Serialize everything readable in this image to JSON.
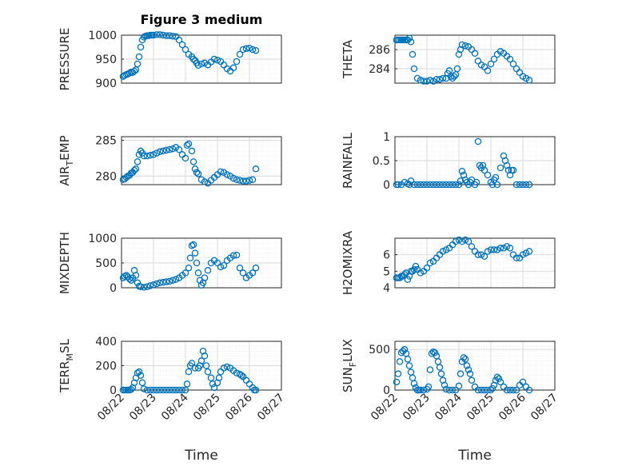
{
  "figure_title": "Figure 3 medium",
  "colors": {
    "marker": "#0072bd",
    "axis": "#262626",
    "grid": "#d7d7d7"
  },
  "chart_data": [
    {
      "type": "scatter",
      "ylabel": "PRESSURE",
      "xlim": [
        0,
        5
      ],
      "xticks": [],
      "ylim": [
        900,
        1000
      ],
      "yticks": [
        900,
        950,
        1000
      ],
      "x": [
        0.05,
        0.1,
        0.15,
        0.2,
        0.25,
        0.3,
        0.35,
        0.4,
        0.45,
        0.5,
        0.55,
        0.6,
        0.65,
        0.7,
        0.75,
        0.8,
        0.85,
        0.9,
        0.95,
        1.0,
        1.1,
        1.2,
        1.3,
        1.4,
        1.5,
        1.6,
        1.7,
        1.8,
        1.9,
        2.0,
        2.1,
        2.2,
        2.25,
        2.3,
        2.35,
        2.4,
        2.5,
        2.6,
        2.7,
        2.8,
        2.9,
        3.0,
        3.1,
        3.2,
        3.3,
        3.4,
        3.5,
        3.6,
        3.7,
        3.8,
        3.9,
        4.0,
        4.1,
        4.2
      ],
      "y": [
        914,
        916,
        918,
        919,
        921,
        923,
        922,
        925,
        928,
        940,
        955,
        975,
        990,
        996,
        998,
        999,
        999,
        1000,
        1000,
        1000,
        1001,
        1001,
        1000,
        999,
        999,
        998,
        997,
        990,
        980,
        970,
        960,
        955,
        950,
        947,
        942,
        937,
        940,
        942,
        938,
        944,
        950,
        948,
        945,
        938,
        930,
        925,
        932,
        945,
        960,
        970,
        972,
        973,
        970,
        968
      ]
    },
    {
      "type": "scatter",
      "ylabel": "THETA",
      "xlim": [
        0,
        5
      ],
      "xticks": [],
      "ylim": [
        282.5,
        287.5
      ],
      "yticks": [
        284,
        286
      ],
      "x": [
        0.05,
        0.1,
        0.15,
        0.2,
        0.25,
        0.3,
        0.35,
        0.4,
        0.45,
        0.5,
        0.55,
        0.6,
        0.7,
        0.8,
        0.9,
        1.0,
        1.1,
        1.2,
        1.3,
        1.4,
        1.5,
        1.6,
        1.65,
        1.7,
        1.75,
        1.8,
        1.85,
        1.9,
        1.95,
        2.0,
        2.05,
        2.1,
        2.2,
        2.3,
        2.4,
        2.5,
        2.6,
        2.7,
        2.8,
        2.9,
        3.0,
        3.1,
        3.2,
        3.3,
        3.4,
        3.5,
        3.6,
        3.7,
        3.8,
        3.9,
        4.0,
        4.1,
        4.2
      ],
      "y": [
        287,
        287,
        287,
        287,
        287,
        287,
        287,
        287,
        287.2,
        286.8,
        285.5,
        284,
        283,
        282.8,
        282.7,
        282.7,
        282.8,
        282.7,
        282.9,
        282.9,
        283,
        283,
        283.5,
        283.8,
        283.2,
        283,
        283.2,
        283.4,
        284,
        285.5,
        286,
        286.5,
        286.4,
        286.3,
        286,
        285.6,
        284.8,
        284.4,
        284.2,
        283.8,
        284.5,
        285,
        285.5,
        285.8,
        285.6,
        285.3,
        285,
        284.5,
        284,
        283.6,
        283.2,
        283,
        282.8
      ]
    },
    {
      "type": "scatter",
      "ylabel": "AIR_TEMP",
      "xlim": [
        0,
        5
      ],
      "xticks": [],
      "ylim": [
        278.8,
        285.5
      ],
      "yticks": [
        280,
        285
      ],
      "x": [
        0.05,
        0.1,
        0.15,
        0.2,
        0.25,
        0.3,
        0.35,
        0.4,
        0.45,
        0.5,
        0.55,
        0.6,
        0.65,
        0.7,
        0.8,
        0.9,
        1.0,
        1.1,
        1.2,
        1.3,
        1.4,
        1.5,
        1.6,
        1.7,
        1.8,
        1.9,
        2.0,
        2.05,
        2.1,
        2.2,
        2.25,
        2.3,
        2.35,
        2.4,
        2.5,
        2.6,
        2.7,
        2.8,
        2.9,
        3.0,
        3.1,
        3.2,
        3.3,
        3.4,
        3.5,
        3.6,
        3.7,
        3.8,
        3.9,
        4.0,
        4.1,
        4.2
      ],
      "y": [
        279.5,
        279.6,
        279.8,
        280,
        280.1,
        280.4,
        280.5,
        280.8,
        281,
        282,
        283,
        283.5,
        283.2,
        282.8,
        282.8,
        282.9,
        283,
        283.2,
        283.4,
        283.5,
        283.6,
        283.7,
        283.8,
        284,
        283.7,
        283,
        282.5,
        284.3,
        284.5,
        283.5,
        282,
        281,
        280.5,
        280.3,
        279.5,
        279.2,
        279,
        279.4,
        279.8,
        280.2,
        280.6,
        280.5,
        280.2,
        280,
        279.7,
        279.5,
        279.4,
        279.3,
        279.3,
        279.4,
        279.5,
        281
      ]
    },
    {
      "type": "scatter",
      "ylabel": "RAINFALL",
      "xlim": [
        0,
        5
      ],
      "xticks": [],
      "ylim": [
        0,
        1
      ],
      "yticks": [
        0,
        0.5,
        1
      ],
      "x": [
        0.05,
        0.1,
        0.2,
        0.3,
        0.4,
        0.45,
        0.5,
        0.6,
        0.7,
        0.8,
        0.9,
        1.0,
        1.1,
        1.2,
        1.3,
        1.4,
        1.5,
        1.6,
        1.7,
        1.8,
        1.9,
        2.0,
        2.05,
        2.1,
        2.15,
        2.2,
        2.25,
        2.3,
        2.35,
        2.4,
        2.5,
        2.55,
        2.6,
        2.65,
        2.7,
        2.75,
        2.8,
        2.9,
        3.0,
        3.05,
        3.1,
        3.15,
        3.2,
        3.3,
        3.4,
        3.45,
        3.5,
        3.55,
        3.6,
        3.65,
        3.7,
        3.8,
        3.9,
        4.0,
        4.1,
        4.2
      ],
      "y": [
        0,
        0,
        0,
        0.05,
        0.02,
        0,
        0.08,
        0,
        0,
        0,
        0,
        0,
        0,
        0,
        0,
        0,
        0,
        0,
        0,
        0,
        0,
        0,
        0.08,
        0.28,
        0.2,
        0.1,
        0.05,
        0,
        0.05,
        0.1,
        0,
        0.05,
        0.9,
        0.4,
        0.35,
        0.4,
        0.3,
        0.2,
        0.05,
        0,
        0.1,
        0.15,
        0,
        0.35,
        0.6,
        0.5,
        0.4,
        0.3,
        0.2,
        0.3,
        0.3,
        0,
        0,
        0,
        0,
        0
      ]
    },
    {
      "type": "scatter",
      "ylabel": "MIXDEPTH",
      "xlim": [
        0,
        5
      ],
      "xticks": [],
      "ylim": [
        0,
        1000
      ],
      "yticks": [
        0,
        500,
        1000
      ],
      "x": [
        0.05,
        0.1,
        0.15,
        0.2,
        0.25,
        0.3,
        0.35,
        0.4,
        0.45,
        0.5,
        0.55,
        0.6,
        0.7,
        0.8,
        0.9,
        1.0,
        1.1,
        1.2,
        1.3,
        1.4,
        1.5,
        1.6,
        1.7,
        1.8,
        1.9,
        2.0,
        2.1,
        2.15,
        2.2,
        2.25,
        2.3,
        2.35,
        2.4,
        2.45,
        2.5,
        2.55,
        2.6,
        2.7,
        2.8,
        2.9,
        3.0,
        3.1,
        3.2,
        3.3,
        3.4,
        3.5,
        3.6,
        3.7,
        3.8,
        3.9,
        4.0,
        4.1,
        4.2
      ],
      "y": [
        200,
        230,
        250,
        220,
        180,
        150,
        200,
        350,
        250,
        100,
        30,
        20,
        10,
        20,
        40,
        60,
        80,
        100,
        110,
        120,
        130,
        150,
        170,
        200,
        250,
        300,
        400,
        600,
        850,
        870,
        700,
        500,
        300,
        150,
        50,
        100,
        200,
        350,
        500,
        550,
        500,
        420,
        450,
        550,
        600,
        650,
        660,
        400,
        300,
        200,
        250,
        300,
        400
      ]
    },
    {
      "type": "scatter",
      "ylabel": "H2OMIXRA",
      "xlim": [
        0,
        5
      ],
      "xticks": [],
      "ylim": [
        4,
        7
      ],
      "yticks": [
        4,
        5,
        6
      ],
      "x": [
        0.05,
        0.1,
        0.15,
        0.2,
        0.25,
        0.3,
        0.35,
        0.4,
        0.45,
        0.5,
        0.55,
        0.6,
        0.65,
        0.7,
        0.8,
        0.9,
        1.0,
        1.1,
        1.2,
        1.3,
        1.4,
        1.5,
        1.6,
        1.7,
        1.8,
        1.9,
        2.0,
        2.1,
        2.2,
        2.3,
        2.4,
        2.5,
        2.6,
        2.7,
        2.8,
        2.9,
        3.0,
        3.1,
        3.2,
        3.3,
        3.4,
        3.5,
        3.6,
        3.7,
        3.8,
        3.9,
        4.0,
        4.1,
        4.2
      ],
      "y": [
        4.6,
        4.6,
        4.6,
        4.7,
        4.7,
        4.8,
        4.9,
        4.5,
        4.7,
        5.0,
        5.0,
        5.1,
        5.3,
        5.1,
        4.9,
        5.0,
        5.2,
        5.5,
        5.6,
        5.8,
        6.0,
        6.2,
        6.3,
        6.4,
        6.6,
        6.8,
        6.9,
        6.8,
        6.9,
        6.8,
        6.5,
        6.2,
        6.0,
        6.0,
        5.9,
        6.2,
        6.3,
        6.3,
        6.3,
        6.4,
        6.4,
        6.5,
        6.4,
        6.0,
        5.8,
        5.8,
        6.0,
        6.1,
        6.2
      ]
    },
    {
      "type": "scatter",
      "ylabel": "TERR_MSL",
      "xlim": [
        0,
        5
      ],
      "xticks": [
        "08/22",
        "08/23",
        "08/24",
        "08/25",
        "08/26",
        "08/27"
      ],
      "ylim": [
        0,
        400
      ],
      "yticks": [
        0,
        200,
        400
      ],
      "x": [
        0.05,
        0.1,
        0.15,
        0.2,
        0.25,
        0.3,
        0.35,
        0.4,
        0.45,
        0.5,
        0.55,
        0.6,
        0.65,
        0.7,
        0.8,
        0.9,
        1.0,
        1.1,
        1.2,
        1.3,
        1.4,
        1.5,
        1.6,
        1.7,
        1.8,
        1.9,
        2.0,
        2.05,
        2.1,
        2.15,
        2.2,
        2.3,
        2.4,
        2.45,
        2.5,
        2.55,
        2.6,
        2.65,
        2.7,
        2.8,
        2.85,
        2.9,
        3.0,
        3.05,
        3.1,
        3.2,
        3.3,
        3.4,
        3.5,
        3.6,
        3.7,
        3.75,
        3.8,
        3.9,
        4.0,
        4.1,
        4.15,
        4.2
      ],
      "y": [
        0,
        0,
        0,
        0,
        0,
        5,
        20,
        60,
        100,
        140,
        150,
        120,
        60,
        10,
        0,
        0,
        0,
        0,
        0,
        0,
        0,
        0,
        0,
        0,
        0,
        0,
        0,
        50,
        150,
        200,
        220,
        180,
        180,
        200,
        240,
        320,
        280,
        200,
        150,
        100,
        50,
        20,
        60,
        100,
        150,
        180,
        190,
        180,
        160,
        140,
        130,
        120,
        110,
        80,
        50,
        20,
        0,
        0
      ]
    },
    {
      "type": "scatter",
      "ylabel": "SUN_FLUX",
      "xlim": [
        0,
        5
      ],
      "xticks": [
        "08/22",
        "08/23",
        "08/24",
        "08/25",
        "08/26",
        "08/27"
      ],
      "ylim": [
        0,
        600
      ],
      "yticks": [
        0,
        500
      ],
      "x": [
        0.05,
        0.1,
        0.15,
        0.2,
        0.25,
        0.3,
        0.35,
        0.4,
        0.45,
        0.5,
        0.55,
        0.6,
        0.65,
        0.7,
        0.75,
        0.8,
        0.9,
        1.0,
        1.05,
        1.1,
        1.15,
        1.2,
        1.25,
        1.3,
        1.35,
        1.4,
        1.45,
        1.5,
        1.55,
        1.6,
        1.7,
        1.8,
        1.9,
        2.0,
        2.05,
        2.1,
        2.15,
        2.2,
        2.25,
        2.3,
        2.35,
        2.4,
        2.5,
        2.6,
        2.7,
        2.8,
        2.9,
        3.0,
        3.05,
        3.1,
        3.15,
        3.2,
        3.25,
        3.3,
        3.4,
        3.5,
        3.6,
        3.7,
        3.8,
        3.9,
        4.0,
        4.1,
        4.2
      ],
      "y": [
        100,
        200,
        350,
        460,
        480,
        500,
        450,
        380,
        300,
        220,
        150,
        80,
        30,
        0,
        0,
        0,
        0,
        10,
        40,
        250,
        450,
        470,
        460,
        420,
        350,
        280,
        200,
        120,
        60,
        10,
        0,
        0,
        0,
        50,
        200,
        350,
        400,
        380,
        300,
        250,
        200,
        120,
        40,
        0,
        0,
        0,
        0,
        0,
        20,
        60,
        120,
        160,
        140,
        100,
        40,
        0,
        0,
        0,
        0,
        60,
        100,
        40,
        0
      ]
    }
  ],
  "xlabel": "Time"
}
